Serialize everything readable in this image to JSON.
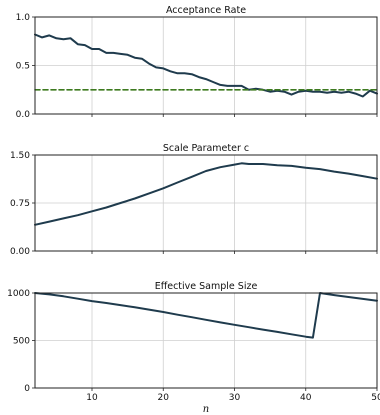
{
  "chart_data": [
    {
      "type": "line",
      "title": "Acceptance Rate",
      "xlabel": "",
      "ylabel": "",
      "xlim": [
        2,
        50
      ],
      "ylim": [
        0,
        1
      ],
      "yticks": [
        0.0,
        0.5,
        1.0
      ],
      "ytick_labels": [
        "0.0",
        "0.5",
        "1.0"
      ],
      "xticks": [
        10,
        20,
        30,
        40,
        50
      ],
      "xtick_labels": [],
      "grid": true,
      "series": [
        {
          "color": "#1f3b4d",
          "style": "solid",
          "x": [
            2,
            3,
            4,
            5,
            6,
            7,
            8,
            9,
            10,
            11,
            12,
            13,
            14,
            15,
            16,
            17,
            18,
            19,
            20,
            21,
            22,
            23,
            24,
            25,
            26,
            27,
            28,
            29,
            30,
            31,
            32,
            33,
            34,
            35,
            36,
            37,
            38,
            39,
            40,
            41,
            42,
            43,
            44,
            45,
            46,
            47,
            48,
            49,
            50
          ],
          "y": [
            0.82,
            0.79,
            0.81,
            0.78,
            0.77,
            0.78,
            0.72,
            0.71,
            0.67,
            0.67,
            0.63,
            0.63,
            0.62,
            0.61,
            0.58,
            0.57,
            0.52,
            0.48,
            0.47,
            0.44,
            0.42,
            0.42,
            0.41,
            0.38,
            0.36,
            0.33,
            0.3,
            0.29,
            0.29,
            0.29,
            0.25,
            0.26,
            0.25,
            0.23,
            0.24,
            0.23,
            0.2,
            0.23,
            0.24,
            0.23,
            0.23,
            0.22,
            0.23,
            0.22,
            0.23,
            0.21,
            0.18,
            0.24,
            0.21
          ]
        },
        {
          "color": "#3d7a1f",
          "style": "dashed",
          "x": [
            2,
            50
          ],
          "y": [
            0.25,
            0.25
          ]
        }
      ]
    },
    {
      "type": "line",
      "title": "Scale Parameter c",
      "xlabel": "",
      "ylabel": "",
      "xlim": [
        2,
        50
      ],
      "ylim": [
        0,
        1.5
      ],
      "yticks": [
        0.0,
        0.75,
        1.5
      ],
      "ytick_labels": [
        "0.00",
        "0.75",
        "1.50"
      ],
      "xticks": [
        10,
        20,
        30,
        40,
        50
      ],
      "xtick_labels": [],
      "grid": true,
      "series": [
        {
          "color": "#1f3b4d",
          "style": "solid",
          "x": [
            2,
            4,
            6,
            8,
            10,
            12,
            14,
            16,
            18,
            20,
            22,
            24,
            26,
            28,
            30,
            31,
            32,
            34,
            36,
            38,
            40,
            42,
            44,
            46,
            48,
            50
          ],
          "y": [
            0.41,
            0.46,
            0.51,
            0.56,
            0.62,
            0.68,
            0.75,
            0.82,
            0.9,
            0.98,
            1.07,
            1.16,
            1.25,
            1.31,
            1.35,
            1.37,
            1.36,
            1.36,
            1.34,
            1.33,
            1.3,
            1.28,
            1.24,
            1.21,
            1.17,
            1.13
          ]
        }
      ]
    },
    {
      "type": "line",
      "title": "Effective Sample Size",
      "xlabel": "n",
      "ylabel": "",
      "xlim": [
        2,
        50
      ],
      "ylim": [
        0,
        1000
      ],
      "yticks": [
        0,
        500,
        1000
      ],
      "ytick_labels": [
        "0",
        "500",
        "1000"
      ],
      "xticks": [
        10,
        20,
        30,
        40,
        50
      ],
      "xtick_labels": [
        "10",
        "20",
        "30",
        "40",
        "50"
      ],
      "grid": true,
      "series": [
        {
          "color": "#1f3b4d",
          "style": "solid",
          "x": [
            2,
            4,
            6,
            8,
            10,
            12,
            14,
            16,
            18,
            20,
            22,
            24,
            26,
            28,
            30,
            32,
            34,
            36,
            38,
            40,
            41,
            42,
            44,
            46,
            48,
            50
          ],
          "y": [
            1000,
            985,
            965,
            940,
            915,
            895,
            873,
            850,
            825,
            800,
            772,
            745,
            718,
            690,
            665,
            640,
            615,
            590,
            565,
            540,
            530,
            1000,
            978,
            958,
            938,
            918
          ]
        }
      ]
    }
  ]
}
